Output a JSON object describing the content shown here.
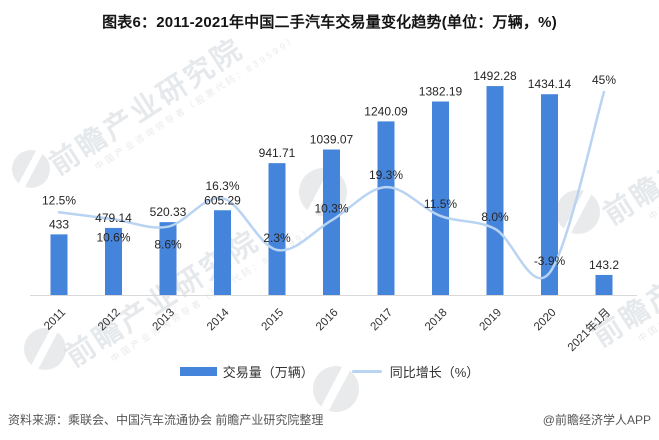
{
  "title": "图表6：2011-2021年中国二手汽车交易量变化趋势(单位：万辆，%)",
  "chart_data": {
    "type": "combo-bar-line",
    "categories": [
      "2011",
      "2012",
      "2013",
      "2014",
      "2015",
      "2016",
      "2017",
      "2018",
      "2019",
      "2020",
      "2021年1月"
    ],
    "series": [
      {
        "name": "交易量（万辆）",
        "type": "bar",
        "color": "#4584DB",
        "values": [
          433,
          479.14,
          520.33,
          605.29,
          941.71,
          1039.07,
          1240.09,
          1382.19,
          1492.28,
          1434.14,
          143.2
        ],
        "labels": [
          "433",
          "479.14",
          "520.33",
          "605.29",
          "941.71",
          "1039.07",
          "1240.09",
          "1382.19",
          "1492.28",
          "1434.14",
          "143.2"
        ]
      },
      {
        "name": "同比增长（%）",
        "type": "line",
        "color": "#B9D3F2",
        "values": [
          12.5,
          10.6,
          8.6,
          16.3,
          2.3,
          10.3,
          19.3,
          11.5,
          8.0,
          -3.9,
          45
        ],
        "labels": [
          "12.5%",
          "10.6%",
          "8.6%",
          "16.3%",
          "2.3%",
          "10.3%",
          "19.3%",
          "11.5%",
          "8.0%",
          "-3.9%",
          "45%"
        ]
      }
    ],
    "data_labels": true,
    "gridlines": false,
    "value_axes_visible": false,
    "legend_position": "bottom",
    "axis_color": "#D9D9D9"
  },
  "legend": {
    "items": [
      {
        "label": "交易量（万辆）",
        "swatch": "bar",
        "color": "#4584DB"
      },
      {
        "label": "同比增长（%）",
        "swatch": "line",
        "color": "#B9D3F2"
      }
    ]
  },
  "footer": {
    "source": "资料来源：乘联会、中国汽车流通协会 前瞻产业研究院整理",
    "credit": "@前瞻经济学人APP"
  },
  "watermark": {
    "text": "前瞻产业研究院",
    "subtext": "中国产业咨询领导者（股票代码：839599）"
  }
}
